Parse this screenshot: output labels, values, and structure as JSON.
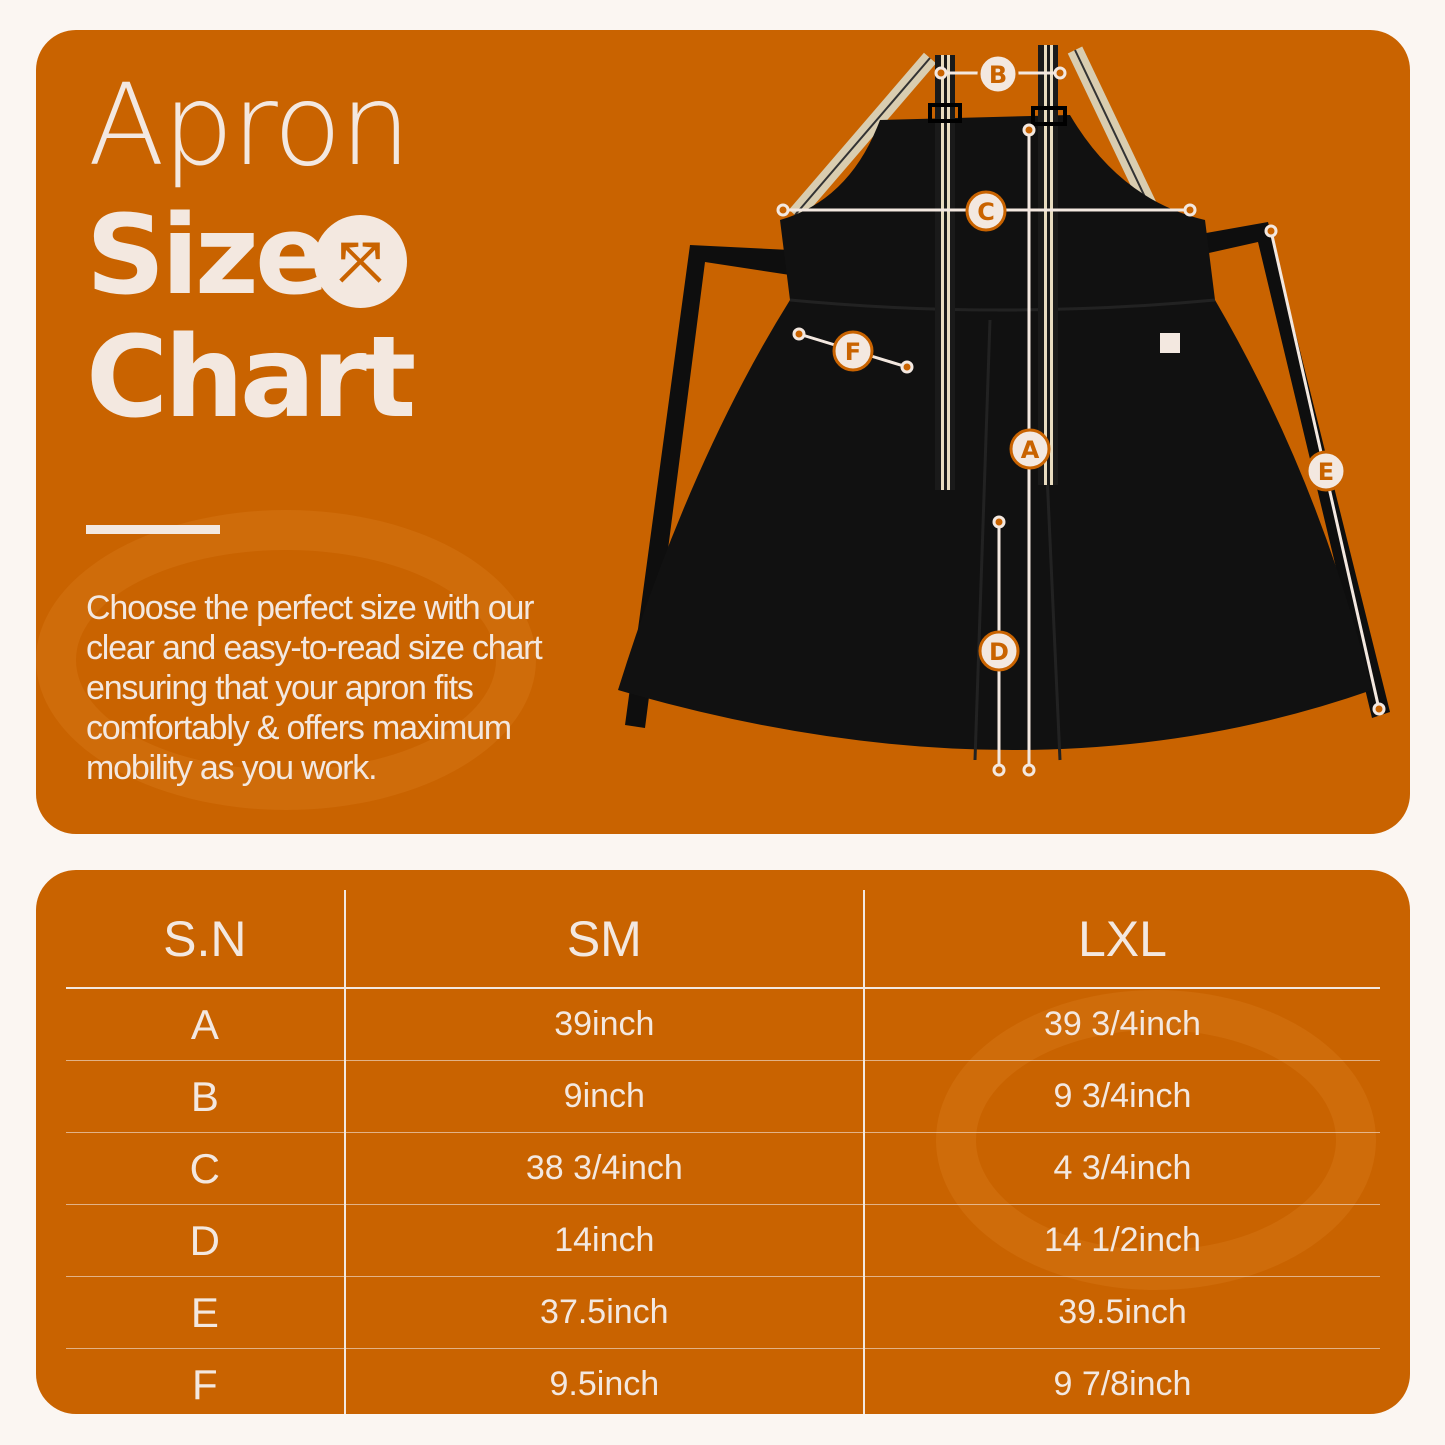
{
  "title": {
    "line1": "Apron",
    "line2": "Size",
    "line3": "Chart"
  },
  "size_icon": "expand-arrows-icon",
  "description": "Choose the perfect size with our clear and easy-to-read size chart ensuring that your apron fits comfortably & offers maximum mobility as you work.",
  "diagram_labels": {
    "a": "A",
    "b": "B",
    "c": "C",
    "d": "D",
    "e": "E",
    "f": "F"
  },
  "colors": {
    "brand_orange": "#c96300",
    "cream": "#f3e8e0",
    "background": "#fbf6f2"
  },
  "table": {
    "headers": [
      "S.N",
      "SM",
      "LXL"
    ],
    "rows": [
      [
        "A",
        "39inch",
        "39 3/4inch"
      ],
      [
        "B",
        "9inch",
        "9 3/4inch"
      ],
      [
        "C",
        "38 3/4inch",
        "4 3/4inch"
      ],
      [
        "D",
        "14inch",
        "14 1/2inch"
      ],
      [
        "E",
        "37.5inch",
        "39.5inch"
      ],
      [
        "F",
        "9.5inch",
        "9 7/8inch"
      ]
    ]
  }
}
